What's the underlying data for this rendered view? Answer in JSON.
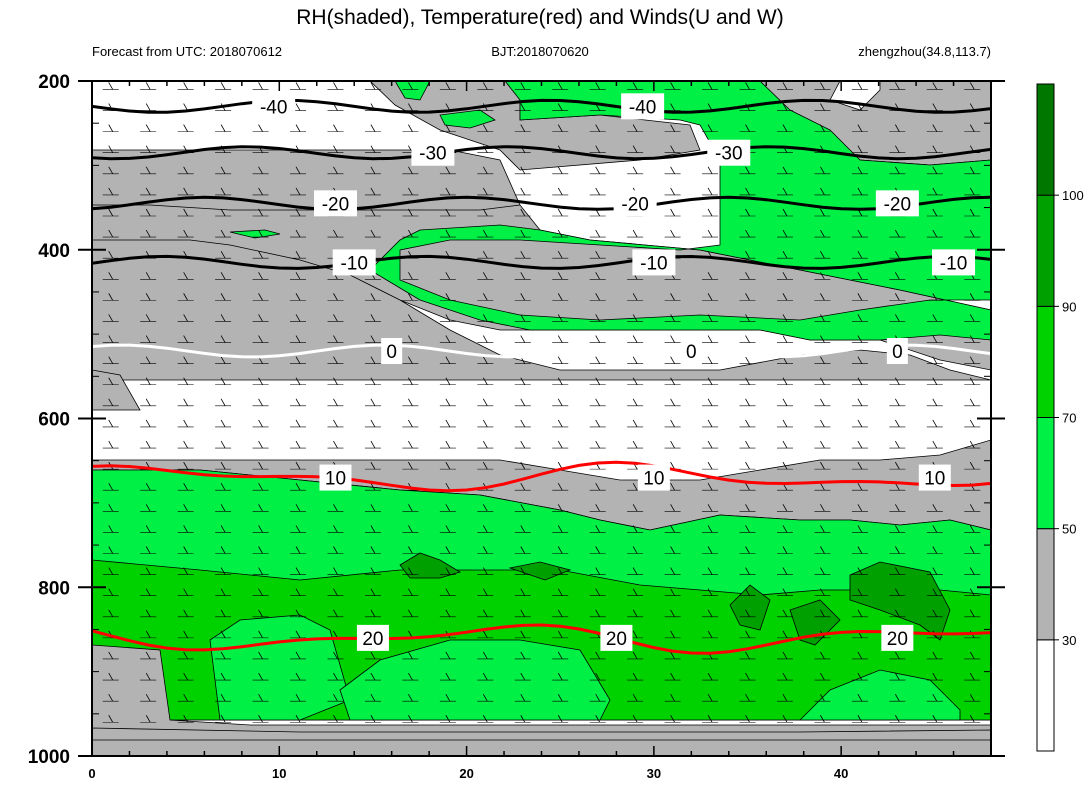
{
  "chart_data": {
    "type": "time-height cross section",
    "title": "RH(shaded), Temperature(red) and Winds(U and W)",
    "subtitle_left": "Forecast from UTC: 2018070612",
    "subtitle_center": "BJT:2018070620",
    "subtitle_right": "zhengzhou(34.8,113.7)",
    "x_range": [
      0,
      48
    ],
    "y_range": [
      1000,
      200
    ],
    "x_ticks": [
      {
        "value": 0,
        "label": "0"
      },
      {
        "value": 10,
        "label": "10"
      },
      {
        "value": 20,
        "label": "20"
      },
      {
        "value": 30,
        "label": "30"
      },
      {
        "value": 40,
        "label": "40"
      }
    ],
    "y_ticks": [
      {
        "value": 200,
        "label": "200"
      },
      {
        "value": 400,
        "label": "400"
      },
      {
        "value": 600,
        "label": "600"
      },
      {
        "value": 800,
        "label": "800"
      },
      {
        "value": 1000,
        "label": "1000"
      }
    ],
    "colorbar": {
      "levels": [
        "30",
        "50",
        "70",
        "90",
        "100"
      ],
      "colors": [
        "#ffffff",
        "#b3b3b3",
        "#00f046",
        "#00d200",
        "#00a000",
        "#007800"
      ]
    },
    "temperature_contours": [
      {
        "value": -40,
        "label": "-40",
        "color": "#000000",
        "pressure": 230
      },
      {
        "value": -30,
        "label": "-30",
        "color": "#000000",
        "pressure": 285
      },
      {
        "value": -20,
        "label": "-20",
        "color": "#000000",
        "pressure": 345
      },
      {
        "value": -10,
        "label": "-10",
        "color": "#000000",
        "pressure": 415
      },
      {
        "value": 0,
        "label": "0",
        "color": "#ffffff",
        "pressure": 520
      },
      {
        "value": 10,
        "label": "10",
        "color": "#ff0000",
        "pressure": 670
      },
      {
        "value": 20,
        "label": "20",
        "color": "#ff0000",
        "pressure": 860
      }
    ],
    "contour_label_positions": [
      {
        "label": "-40",
        "x": [
          9.7,
          29.4
        ]
      },
      {
        "label": "-30",
        "x": [
          18.2,
          34.0
        ]
      },
      {
        "label": "-20",
        "x": [
          13.0,
          29.0,
          43.0
        ]
      },
      {
        "label": "-10",
        "x": [
          14.0,
          30.0,
          46.0
        ]
      },
      {
        "label": "0",
        "x": [
          16.0,
          32.0,
          43.0
        ]
      },
      {
        "label": "10",
        "x": [
          13.0,
          30.0,
          45.0
        ]
      },
      {
        "label": "20",
        "x": [
          15.0,
          28.0,
          43.0
        ]
      }
    ]
  }
}
